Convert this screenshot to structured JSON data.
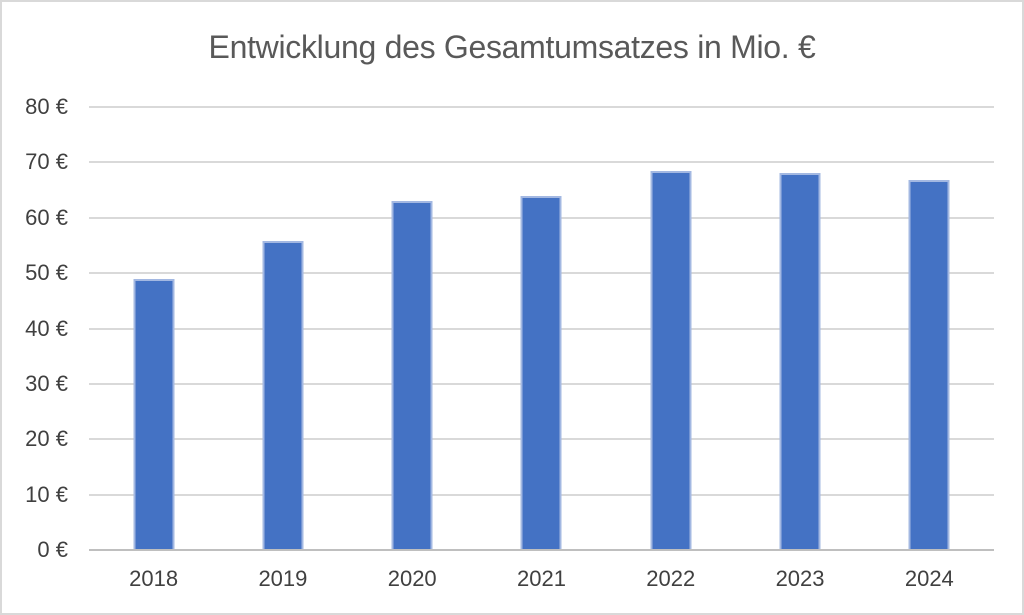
{
  "chart_data": {
    "type": "bar",
    "title": "Entwicklung des Gesamtumsatzes in Mio. €",
    "categories": [
      "2018",
      "2019",
      "2020",
      "2021",
      "2022",
      "2023",
      "2024"
    ],
    "values": [
      49,
      55.8,
      63,
      64,
      68.4,
      68.1,
      66.9
    ],
    "xlabel": "",
    "ylabel": "",
    "ylim": [
      0,
      80
    ],
    "y_tick_step": 10,
    "y_tick_labels": [
      "0 €",
      "10 €",
      "20 €",
      "30 €",
      "40 €",
      "50 €",
      "60 €",
      "70 €",
      "80 €"
    ],
    "grid": "horizontal-only",
    "legend": "none"
  },
  "colors": {
    "bar_fill": "#4472C4",
    "bar_border": "#A3B8E2",
    "gridline": "#D9D9D9",
    "axis_line": "#BFBFBF",
    "title_text": "#595959",
    "tick_text": "#404040",
    "chart_border": "#D9D9D9",
    "background": "#FFFFFF"
  }
}
